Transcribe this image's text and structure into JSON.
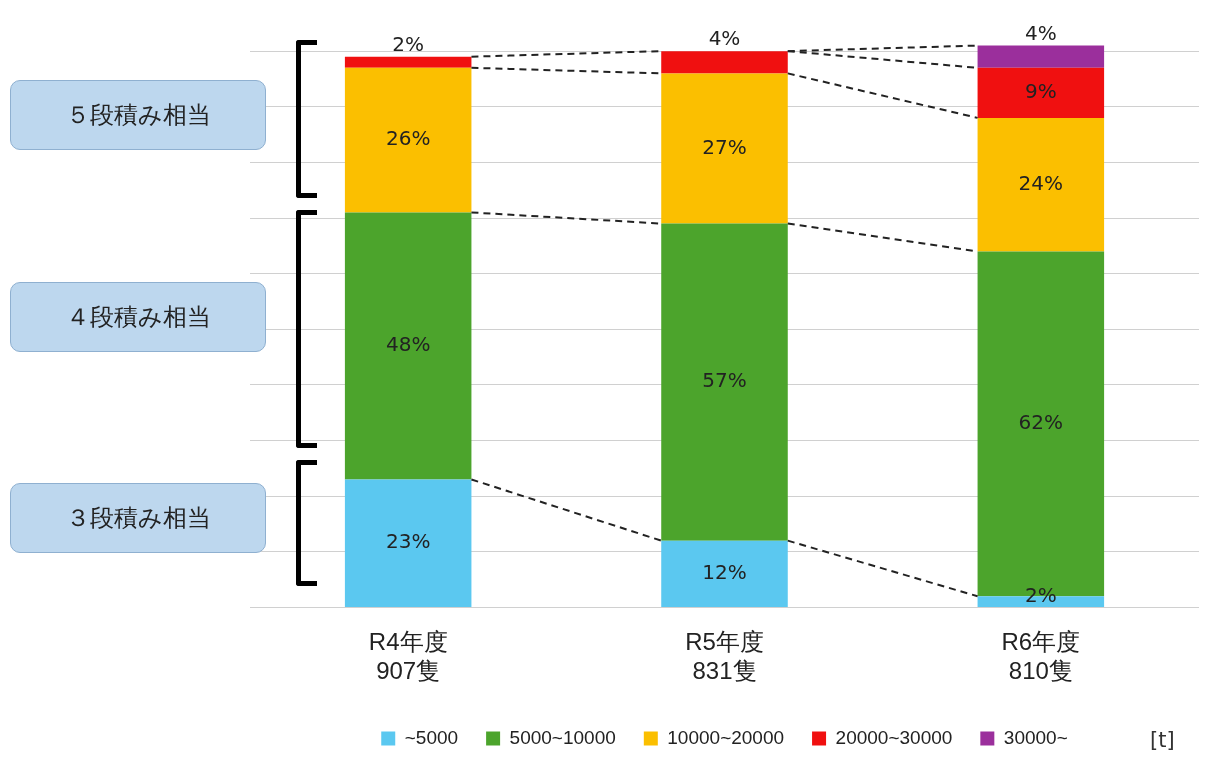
{
  "chart_data": {
    "type": "bar",
    "stacked": true,
    "categories": [
      "R4年度\n907隻",
      "R5年度\n831隻",
      "R6年度\n810隻"
    ],
    "series": [
      {
        "name": "~5000",
        "color": "#5bc8f0",
        "values": [
          23,
          12,
          2
        ],
        "value_labels": [
          "23%",
          "12%",
          "2%"
        ]
      },
      {
        "name": "5000~10000",
        "color": "#4ca42c",
        "values": [
          48,
          57,
          62
        ],
        "value_labels": [
          "48%",
          "57%",
          "62%"
        ]
      },
      {
        "name": "10000~20000",
        "color": "#fbbf00",
        "values": [
          26,
          27,
          24
        ],
        "value_labels": [
          "26%",
          "27%",
          "24%"
        ]
      },
      {
        "name": "20000~30000",
        "color": "#f01010",
        "values": [
          2,
          4,
          9
        ],
        "value_labels": [
          "2%",
          "4%",
          "9%"
        ]
      },
      {
        "name": "30000~",
        "color": "#9b2f9c",
        "values": [
          null,
          null,
          4
        ],
        "value_labels": [
          null,
          null,
          "4%"
        ]
      }
    ],
    "ylim": [
      0,
      102
    ],
    "yticks": [
      {
        "value": 0,
        "label": null
      },
      {
        "value": 10,
        "label": null
      },
      {
        "value": 20,
        "label": null
      },
      {
        "value": 30,
        "label": null
      },
      {
        "value": 40,
        "label": null
      },
      {
        "value": 50,
        "label": null
      },
      {
        "value": 60,
        "label": null
      },
      {
        "value": 70,
        "label": null
      },
      {
        "value": 80,
        "label": null
      },
      {
        "value": 90,
        "label": null
      },
      {
        "value": 100,
        "label": null
      }
    ],
    "tick_labels": "x",
    "grid": "y",
    "legend": "bottom",
    "legend_title": "[t]",
    "annotations": [
      "５段積み相当",
      "４段積み相当",
      "３段積み相当"
    ]
  }
}
